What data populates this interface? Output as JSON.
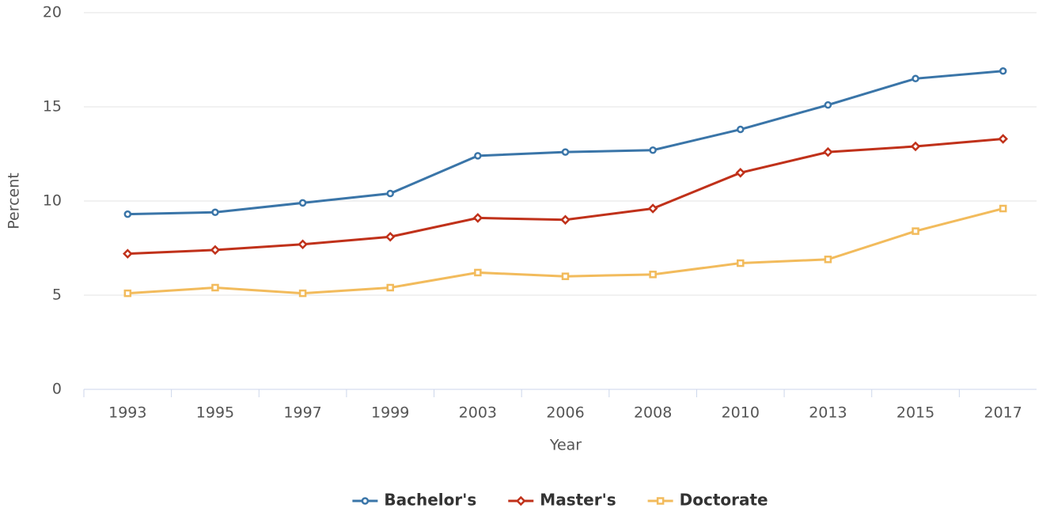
{
  "chart_data": {
    "type": "line",
    "categories": [
      "1993",
      "1995",
      "1997",
      "1999",
      "2003",
      "2006",
      "2008",
      "2010",
      "2013",
      "2015",
      "2017"
    ],
    "series": [
      {
        "name": "Bachelor's",
        "color": "#3a75a8",
        "marker": "circle",
        "values": [
          9.3,
          9.4,
          9.9,
          10.4,
          12.4,
          12.6,
          12.7,
          13.8,
          15.1,
          16.5,
          16.9
        ]
      },
      {
        "name": "Master's",
        "color": "#c0311a",
        "marker": "diamond",
        "values": [
          7.2,
          7.4,
          7.7,
          8.1,
          9.1,
          9.0,
          9.6,
          11.5,
          12.6,
          12.9,
          13.3
        ]
      },
      {
        "name": "Doctorate",
        "color": "#f2bb5c",
        "marker": "square",
        "values": [
          5.1,
          5.4,
          5.1,
          5.4,
          6.2,
          6.0,
          6.1,
          6.7,
          6.9,
          8.4,
          9.6
        ]
      }
    ],
    "x_label": "Year",
    "y_label": "Percent",
    "ylim": [
      0,
      20
    ],
    "yticks": [
      0,
      5,
      10,
      15,
      20
    ],
    "grid": true,
    "legend": "bottom"
  }
}
